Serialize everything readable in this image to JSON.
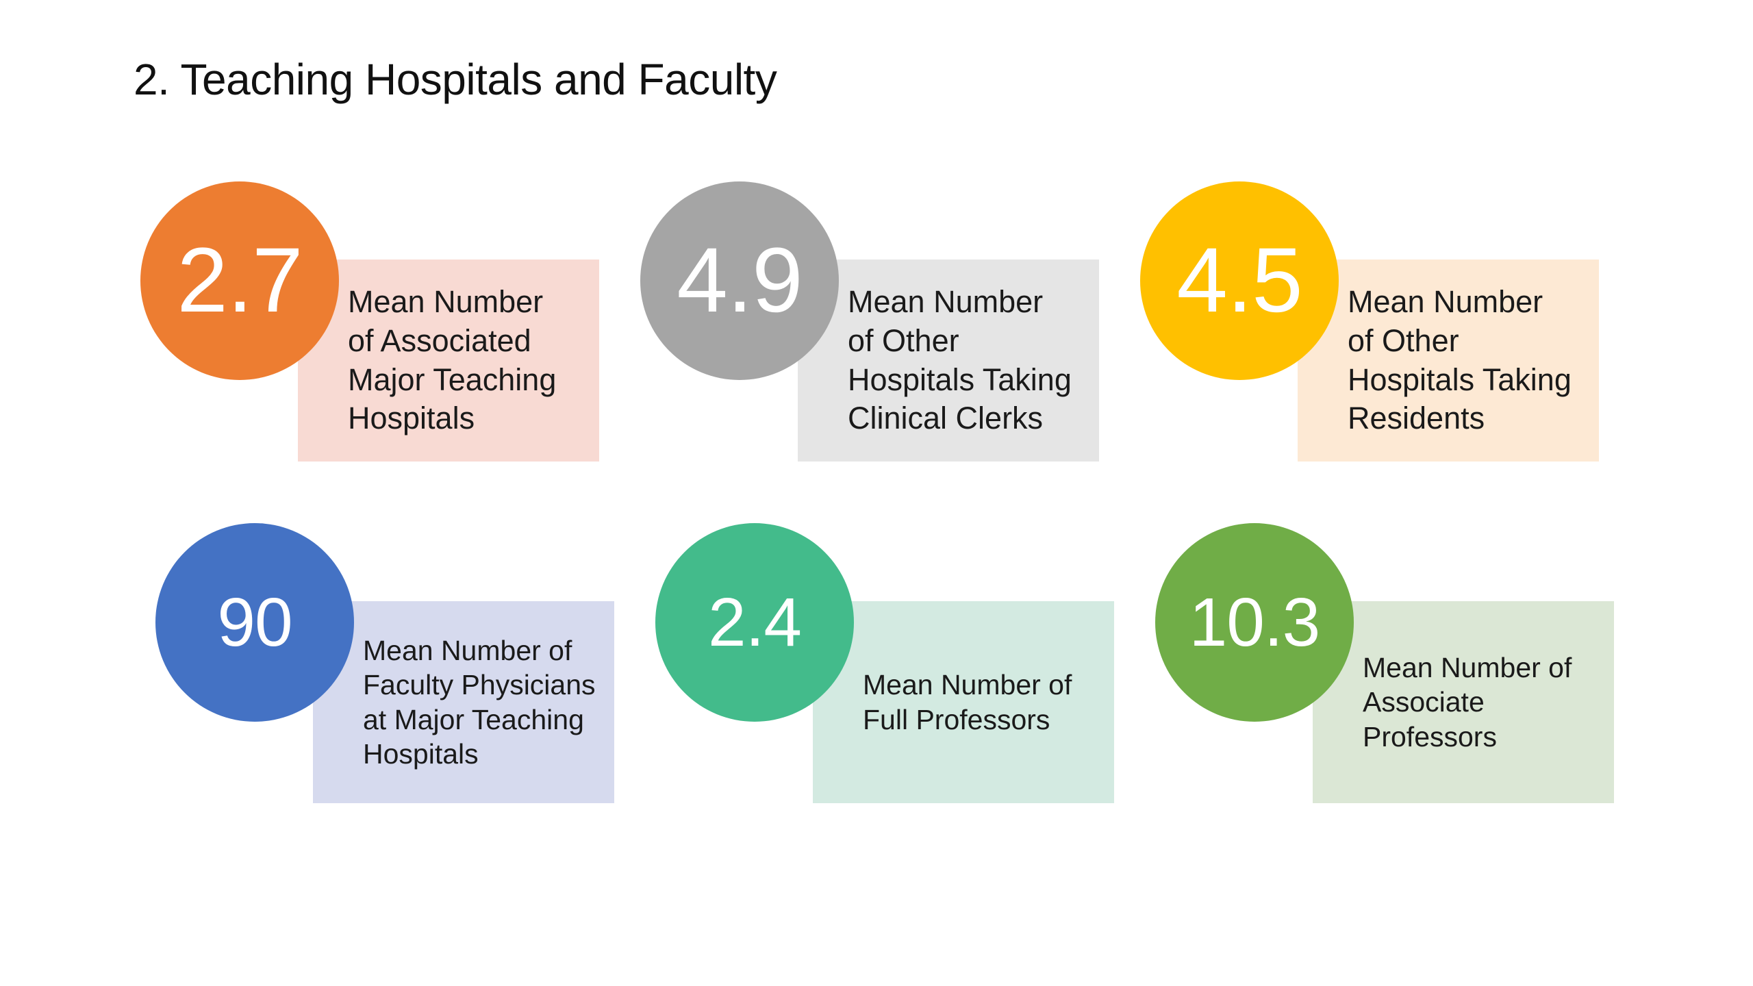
{
  "slide": {
    "title": "2. Teaching Hospitals and Faculty"
  },
  "stats": [
    {
      "value": "2.7",
      "label": "Mean Number\nof Associated\nMajor Teaching\nHospitals",
      "circle_color": "#ED7D31",
      "box_color": "#F8DAD3"
    },
    {
      "value": "4.9",
      "label": "Mean Number\nof Other\nHospitals Taking\nClinical Clerks",
      "circle_color": "#A5A5A5",
      "box_color": "#E5E5E5"
    },
    {
      "value": "4.5",
      "label": "Mean Number\nof Other\nHospitals Taking\nResidents",
      "circle_color": "#FFC000",
      "box_color": "#FDE9D4"
    },
    {
      "value": "90",
      "label": "Mean Number of\nFaculty Physicians\nat Major Teaching\nHospitals",
      "circle_color": "#4472C4",
      "box_color": "#D6DAEE"
    },
    {
      "value": "2.4",
      "label": "Mean Number of\nFull Professors",
      "circle_color": "#43BB8B",
      "box_color": "#D3EAE1"
    },
    {
      "value": "10.3",
      "label": "Mean Number of\nAssociate\nProfessors",
      "circle_color": "#70AD47",
      "box_color": "#DBE7D5"
    }
  ]
}
